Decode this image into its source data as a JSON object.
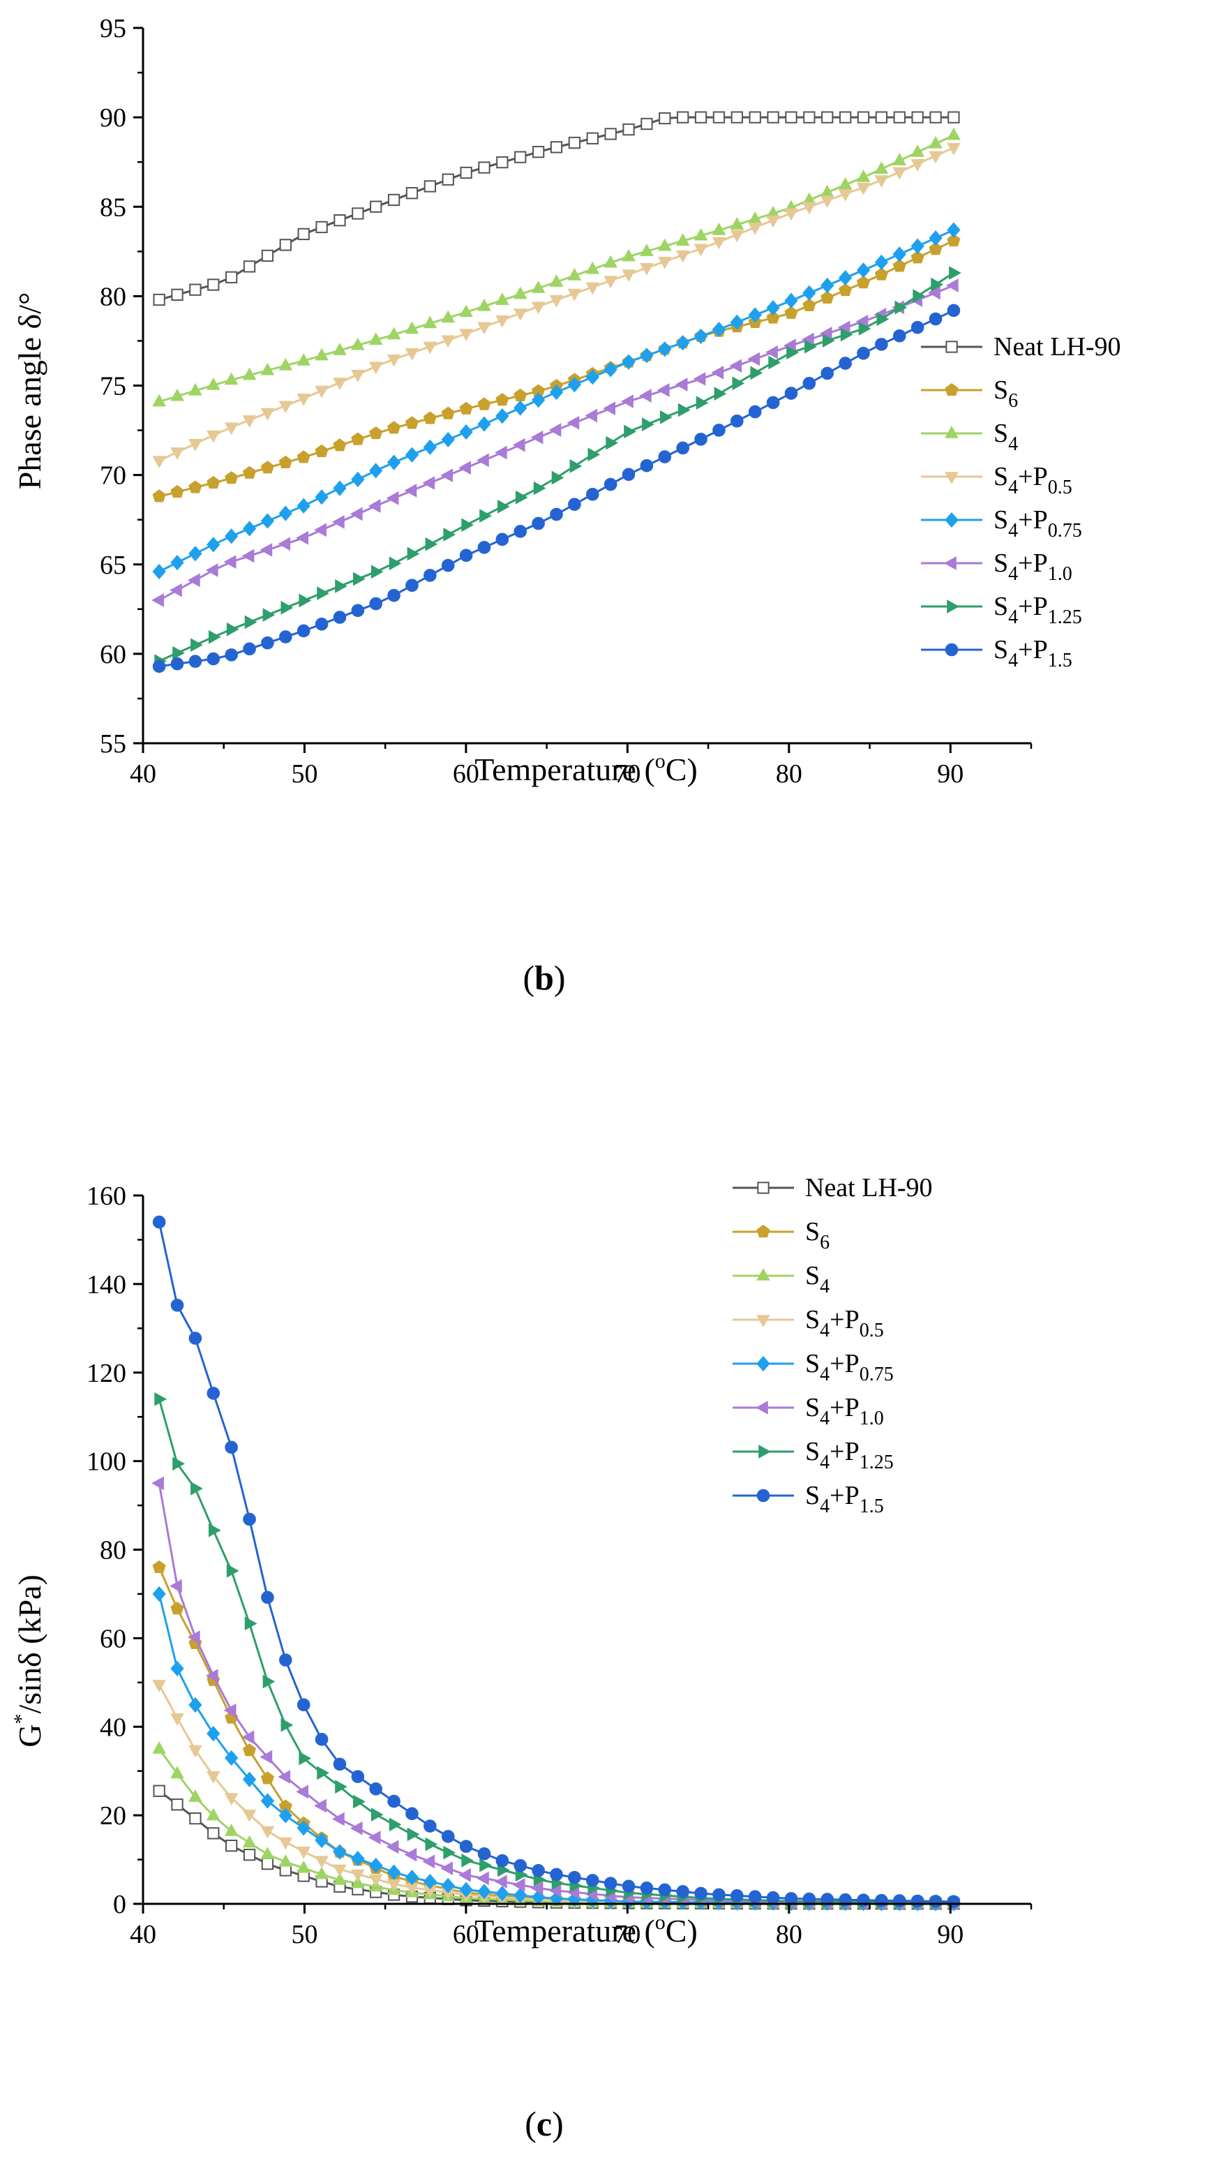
{
  "colors": {
    "neat": "#666666",
    "S6": "#c8a02c",
    "S4": "#9ed464",
    "S4P05": "#e6c894",
    "S4P075": "#1ea0ee",
    "S4P10": "#a97ad6",
    "S4P125": "#2e9e6a",
    "S4P15": "#2464d2"
  },
  "legend": [
    {
      "key": "neat",
      "base": "Neat LH-90",
      "sub": "",
      "suffix": "",
      "sub2": "",
      "marker": "square"
    },
    {
      "key": "S6",
      "base": "S",
      "sub": "6",
      "suffix": "",
      "sub2": "",
      "marker": "pentagon"
    },
    {
      "key": "S4",
      "base": "S",
      "sub": "4",
      "suffix": "",
      "sub2": "",
      "marker": "triangle-up"
    },
    {
      "key": "S4P05",
      "base": "S",
      "sub": "4",
      "suffix": "+P",
      "sub2": "0.5",
      "marker": "triangle-down"
    },
    {
      "key": "S4P075",
      "base": "S",
      "sub": "4",
      "suffix": "+P",
      "sub2": "0.75",
      "marker": "diamond"
    },
    {
      "key": "S4P10",
      "base": "S",
      "sub": "4",
      "suffix": "+P",
      "sub2": "1.0",
      "marker": "triangle-left"
    },
    {
      "key": "S4P125",
      "base": "S",
      "sub": "4",
      "suffix": "+P",
      "sub2": "1.25",
      "marker": "triangle-right"
    },
    {
      "key": "S4P15",
      "base": "S",
      "sub": "4",
      "suffix": "+P",
      "sub2": "1.5",
      "marker": "circle"
    }
  ],
  "chart_data": [
    {
      "type": "line",
      "panel": "(b)",
      "xlabel": "Temperature (°C)",
      "ylabel": "Phase angle δ/°",
      "xlim": [
        40,
        95
      ],
      "ylim": [
        55,
        95
      ],
      "xticks": [
        40,
        50,
        60,
        70,
        80,
        90
      ],
      "yticks": [
        55,
        60,
        65,
        70,
        75,
        80,
        85,
        90,
        95
      ],
      "x_start": 41,
      "x_end": 90.2,
      "n_points": 45,
      "legend_position": "right",
      "series": [
        {
          "key": "neat",
          "name": "Neat LH-90",
          "anchors": [
            [
              41,
              79.8
            ],
            [
              45,
              80.8
            ],
            [
              50,
              83.5
            ],
            [
              55,
              85.2
            ],
            [
              60,
              86.9
            ],
            [
              65,
              88.2
            ],
            [
              70,
              89.3
            ],
            [
              72.5,
              90
            ],
            [
              90.2,
              90
            ]
          ]
        },
        {
          "key": "S6",
          "name": "S6",
          "anchors": [
            [
              41,
              68.8
            ],
            [
              45,
              69.7
            ],
            [
              50,
              71.0
            ],
            [
              55,
              72.5
            ],
            [
              60,
              73.7
            ],
            [
              65,
              74.8
            ],
            [
              70,
              76.3
            ],
            [
              75,
              77.9
            ],
            [
              80,
              79.0
            ],
            [
              85,
              80.9
            ],
            [
              90.2,
              83.1
            ]
          ]
        },
        {
          "key": "S4",
          "name": "S4",
          "anchors": [
            [
              41,
              74.1
            ],
            [
              45,
              75.2
            ],
            [
              50,
              76.4
            ],
            [
              55,
              77.7
            ],
            [
              60,
              79.1
            ],
            [
              65,
              80.6
            ],
            [
              70,
              82.2
            ],
            [
              75,
              83.5
            ],
            [
              80,
              84.9
            ],
            [
              85,
              86.8
            ],
            [
              90.2,
              89.0
            ]
          ]
        },
        {
          "key": "S4P05",
          "name": "S4+P0.5",
          "anchors": [
            [
              41,
              70.8
            ],
            [
              45,
              72.5
            ],
            [
              50,
              74.3
            ],
            [
              55,
              76.3
            ],
            [
              60,
              77.9
            ],
            [
              65,
              79.6
            ],
            [
              70,
              81.2
            ],
            [
              75,
              82.8
            ],
            [
              80,
              84.6
            ],
            [
              85,
              86.2
            ],
            [
              90.2,
              88.3
            ]
          ]
        },
        {
          "key": "S4P075",
          "name": "S4+P0.75",
          "anchors": [
            [
              41,
              64.6
            ],
            [
              45,
              66.4
            ],
            [
              50,
              68.3
            ],
            [
              55,
              70.5
            ],
            [
              60,
              72.4
            ],
            [
              65,
              74.4
            ],
            [
              70,
              76.3
            ],
            [
              75,
              77.9
            ],
            [
              80,
              79.7
            ],
            [
              85,
              81.6
            ],
            [
              90.2,
              83.7
            ]
          ]
        },
        {
          "key": "S4P10",
          "name": "S4+P1.0",
          "anchors": [
            [
              41,
              63.0
            ],
            [
              45,
              65.0
            ],
            [
              50,
              66.5
            ],
            [
              55,
              68.5
            ],
            [
              60,
              70.4
            ],
            [
              65,
              72.3
            ],
            [
              70,
              74.1
            ],
            [
              75,
              75.5
            ],
            [
              80,
              77.2
            ],
            [
              85,
              78.7
            ],
            [
              90.2,
              80.6
            ]
          ]
        },
        {
          "key": "S4P125",
          "name": "S4+P1.25",
          "anchors": [
            [
              41,
              59.6
            ],
            [
              45,
              61.2
            ],
            [
              50,
              63.0
            ],
            [
              55,
              64.8
            ],
            [
              60,
              67.2
            ],
            [
              65,
              69.5
            ],
            [
              70,
              72.4
            ],
            [
              75,
              74.2
            ],
            [
              80,
              76.8
            ],
            [
              85,
              78.3
            ],
            [
              90.2,
              81.3
            ]
          ]
        },
        {
          "key": "S4P15",
          "name": "S4+P1.5",
          "anchors": [
            [
              41,
              59.3
            ],
            [
              45,
              59.8
            ],
            [
              50,
              61.3
            ],
            [
              55,
              63.0
            ],
            [
              60,
              65.5
            ],
            [
              65,
              67.5
            ],
            [
              70,
              70.0
            ],
            [
              75,
              72.2
            ],
            [
              80,
              74.5
            ],
            [
              85,
              77.0
            ],
            [
              90.2,
              79.2
            ]
          ]
        }
      ]
    },
    {
      "type": "line",
      "panel": "(c)",
      "xlabel": "Temperature (°C)",
      "ylabel": "G*/sinδ (kPa)",
      "xlim": [
        40,
        95
      ],
      "ylim": [
        0,
        160
      ],
      "xticks": [
        40,
        50,
        60,
        70,
        80,
        90
      ],
      "yticks": [
        0,
        20,
        40,
        60,
        80,
        100,
        120,
        140,
        160
      ],
      "x_start": 41,
      "x_end": 90.2,
      "n_points": 45,
      "legend_position": "top-right",
      "series": [
        {
          "key": "neat",
          "name": "Neat LH-90",
          "anchors": [
            [
              41,
              25.5
            ],
            [
              43,
              20.0
            ],
            [
              45,
              14.0
            ],
            [
              48,
              8.5
            ],
            [
              52,
              4.0
            ],
            [
              56,
              1.8
            ],
            [
              60,
              0.8
            ],
            [
              65,
              0.3
            ],
            [
              70,
              0.15
            ],
            [
              80,
              0.05
            ],
            [
              90.2,
              0.02
            ]
          ]
        },
        {
          "key": "S6",
          "name": "S6",
          "anchors": [
            [
              41,
              76.0
            ],
            [
              42,
              67.5
            ],
            [
              43.5,
              57.0
            ],
            [
              46,
              38.0
            ],
            [
              49,
              21.0
            ],
            [
              52,
              12.0
            ],
            [
              56,
              5.5
            ],
            [
              60,
              2.5
            ],
            [
              65,
              1.0
            ],
            [
              70,
              0.4
            ],
            [
              80,
              0.1
            ],
            [
              90.2,
              0.05
            ]
          ]
        },
        {
          "key": "S4",
          "name": "S4",
          "anchors": [
            [
              41,
              35.0
            ],
            [
              43,
              25.0
            ],
            [
              45,
              17.5
            ],
            [
              48,
              10.5
            ],
            [
              52,
              5.5
            ],
            [
              56,
              2.8
            ],
            [
              60,
              1.3
            ],
            [
              65,
              0.5
            ],
            [
              70,
              0.2
            ],
            [
              80,
              0.08
            ],
            [
              90.2,
              0.05
            ]
          ]
        },
        {
          "key": "S4P05",
          "name": "S4+P0.5",
          "anchors": [
            [
              41,
              49.5
            ],
            [
              43,
              36.0
            ],
            [
              45,
              25.5
            ],
            [
              48,
              15.5
            ],
            [
              52,
              8.0
            ],
            [
              56,
              4.0
            ],
            [
              60,
              2.0
            ],
            [
              65,
              0.8
            ],
            [
              70,
              0.35
            ],
            [
              80,
              0.1
            ],
            [
              90.2,
              0.05
            ]
          ]
        },
        {
          "key": "S4P075",
          "name": "S4+P0.75",
          "anchors": [
            [
              41,
              70.0
            ],
            [
              42,
              54.0
            ],
            [
              43.5,
              43.0
            ],
            [
              45,
              35.0
            ],
            [
              48,
              22.0
            ],
            [
              52,
              12.0
            ],
            [
              56,
              6.5
            ],
            [
              60,
              3.2
            ],
            [
              65,
              1.3
            ],
            [
              70,
              0.5
            ],
            [
              80,
              0.15
            ],
            [
              90.2,
              0.06
            ]
          ]
        },
        {
          "key": "S4P10",
          "name": "S4+P1.0",
          "anchors": [
            [
              41,
              95.0
            ],
            [
              42,
              73.0
            ],
            [
              43.5,
              57.5
            ],
            [
              46,
              40.0
            ],
            [
              49,
              28.0
            ],
            [
              52,
              19.5
            ],
            [
              56,
              12.0
            ],
            [
              60,
              6.5
            ],
            [
              65,
              3.2
            ],
            [
              70,
              1.5
            ],
            [
              75,
              0.8
            ],
            [
              80,
              0.4
            ],
            [
              90.2,
              0.15
            ]
          ]
        },
        {
          "key": "S4P125",
          "name": "S4+P1.25",
          "anchors": [
            [
              41,
              114.0
            ],
            [
              42,
              100.0
            ],
            [
              43.5,
              92.5
            ],
            [
              44.5,
              83.0
            ],
            [
              46,
              71.0
            ],
            [
              47,
              58.0
            ],
            [
              48,
              47.0
            ],
            [
              49,
              39.0
            ],
            [
              50,
              32.5
            ],
            [
              52,
              27.0
            ],
            [
              54,
              21.0
            ],
            [
              56,
              17.0
            ],
            [
              58,
              13.0
            ],
            [
              60,
              9.8
            ],
            [
              65,
              5.0
            ],
            [
              70,
              2.5
            ],
            [
              75,
              1.2
            ],
            [
              80,
              0.6
            ],
            [
              90.2,
              0.2
            ]
          ]
        },
        {
          "key": "S4P15",
          "name": "S4+P1.5",
          "anchors": [
            [
              41,
              154.0
            ],
            [
              42,
              136.0
            ],
            [
              43.5,
              126.0
            ],
            [
              44.5,
              113.5
            ],
            [
              46,
              97.5
            ],
            [
              47,
              79.5
            ],
            [
              48,
              65.0
            ],
            [
              49,
              53.0
            ],
            [
              50,
              44.5
            ],
            [
              51,
              37.5
            ],
            [
              52,
              32.0
            ],
            [
              54,
              27.0
            ],
            [
              56,
              22.0
            ],
            [
              58,
              17.0
            ],
            [
              60,
              13.0
            ],
            [
              62,
              10.0
            ],
            [
              65,
              7.0
            ],
            [
              70,
              4.0
            ],
            [
              75,
              2.2
            ],
            [
              80,
              1.2
            ],
            [
              85,
              0.8
            ],
            [
              90.2,
              0.5
            ]
          ]
        }
      ]
    }
  ]
}
